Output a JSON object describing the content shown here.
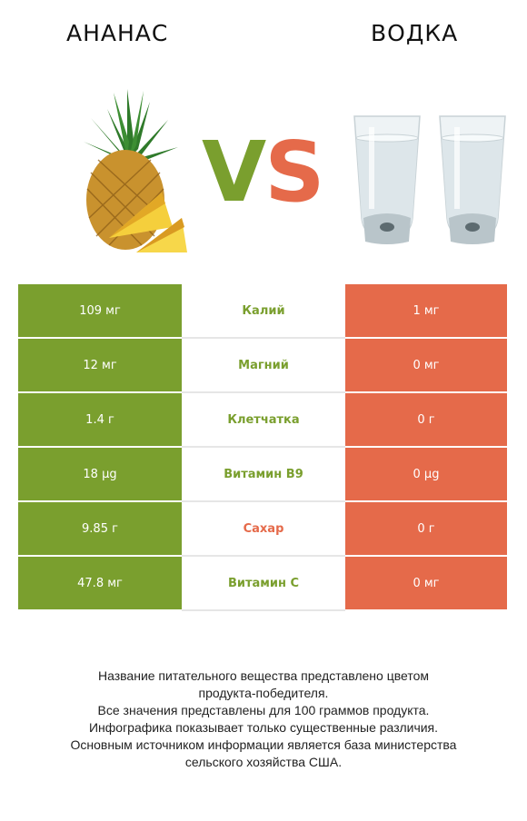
{
  "header": {
    "left_title": "АНАНАС",
    "right_title": "ВОДКА",
    "vs_v": "V",
    "vs_s": "S"
  },
  "colors": {
    "left": "#7a9f2e",
    "right": "#e56a4a"
  },
  "rows": [
    {
      "left": "109 мг",
      "nutrient": "Калий",
      "right": "1 мг",
      "winner": "left"
    },
    {
      "left": "12 мг",
      "nutrient": "Магний",
      "right": "0 мг",
      "winner": "left"
    },
    {
      "left": "1.4 г",
      "nutrient": "Клетчатка",
      "right": "0 г",
      "winner": "left"
    },
    {
      "left": "18 µg",
      "nutrient": "Витамин B9",
      "right": "0 µg",
      "winner": "left"
    },
    {
      "left": "9.85 г",
      "nutrient": "Сахар",
      "right": "0 г",
      "winner": "right"
    },
    {
      "left": "47.8 мг",
      "nutrient": "Витамин C",
      "right": "0 мг",
      "winner": "left"
    }
  ],
  "footer": {
    "line1": "Название питательного вещества представлено цветом",
    "line2": "продукта-победителя.",
    "line3": "Все значения представлены для 100 граммов продукта.",
    "line4": "Инфографика показывает только существенные различия.",
    "line5": "Основным источником информации является база министерства",
    "line6": "сельского хозяйства США."
  }
}
